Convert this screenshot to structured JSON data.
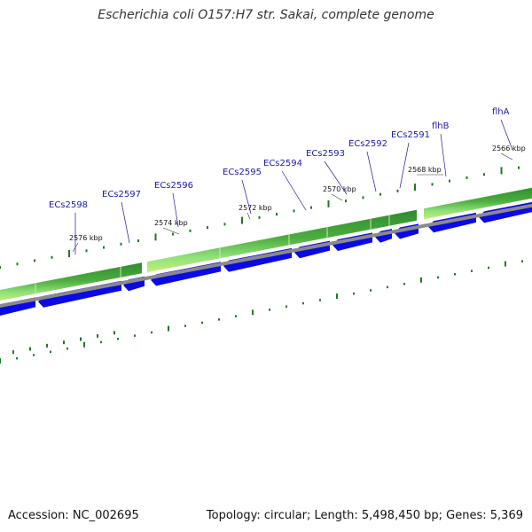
{
  "title": "Escherichia coli O157:H7 str. Sakai, complete genome",
  "footer": {
    "accession": "Accession: NC_002695",
    "summary": "Topology: circular; Length: 5,498,450 bp; Genes: 5,369"
  },
  "genes": [
    {
      "label": "ECs2598",
      "strand": "-"
    },
    {
      "label": "ECs2597",
      "strand": "-"
    },
    {
      "label": "ECs2596",
      "strand": "-"
    },
    {
      "label": "ECs2595",
      "strand": "-"
    },
    {
      "label": "ECs2594",
      "strand": "-"
    },
    {
      "label": "ECs2593",
      "strand": "-"
    },
    {
      "label": "ECs2592",
      "strand": "-"
    },
    {
      "label": "ECs2591",
      "strand": "-"
    },
    {
      "label": "flhB",
      "strand": "-"
    },
    {
      "label": "flhA",
      "strand": "-"
    }
  ],
  "ruler": [
    "2576 kbp",
    "2574 kbp",
    "2572 kbp",
    "2570 kbp",
    "2568 kbp",
    "2566 kbp"
  ],
  "colors": {
    "cds": "#0a0ae6",
    "gene_dark": "#2f8a2f",
    "gene_light": "#8fe07a",
    "backbone": "#8a8a8a",
    "tick": "#1f7a1f",
    "label": "#1a1aa6"
  }
}
